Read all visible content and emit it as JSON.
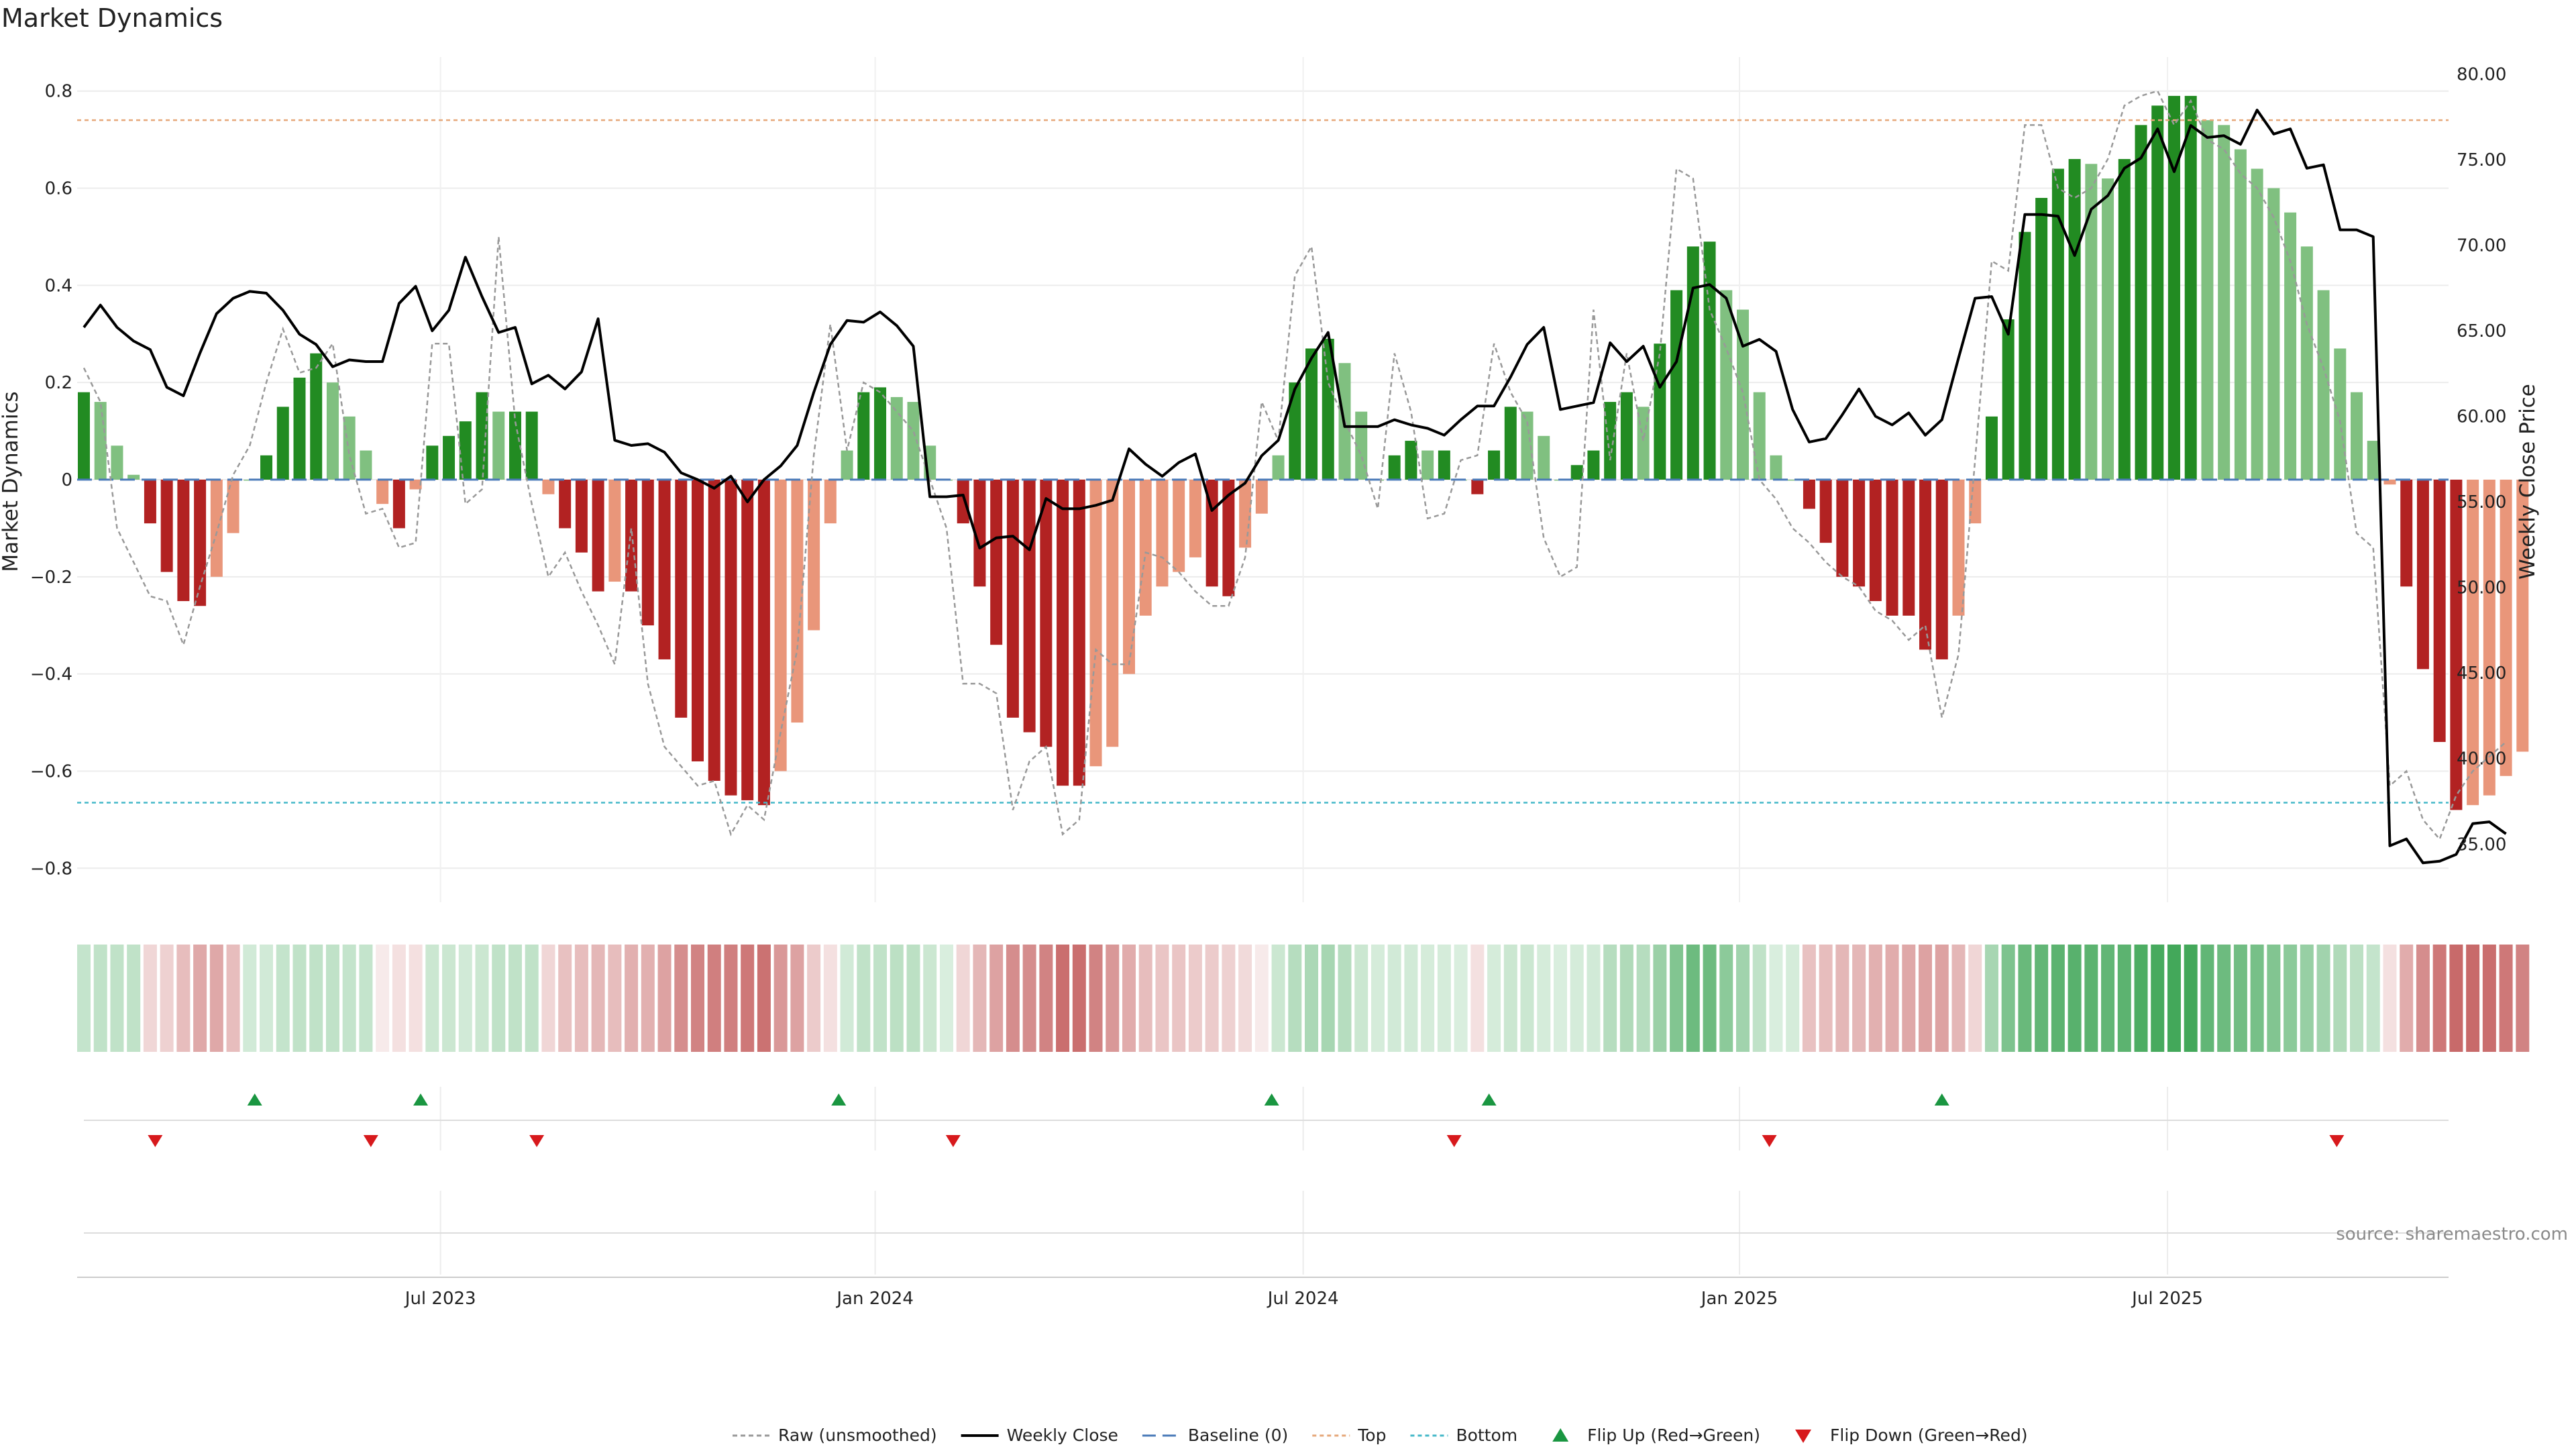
{
  "chart_data": {
    "type": "bar",
    "title": "Market Dynamics",
    "ylabel_left": "Market Dynamics",
    "ylabel_right": "Weekly Close Price",
    "ylim_left": [
      -0.87,
      0.87
    ],
    "ylim_right": [
      31.6,
      81.0
    ],
    "left_ticks": [
      {
        "v": 0.8,
        "label": "0.8"
      },
      {
        "v": 0.6,
        "label": "0.6"
      },
      {
        "v": 0.4,
        "label": "0.4"
      },
      {
        "v": 0.2,
        "label": "0.2"
      },
      {
        "v": 0,
        "label": "0"
      },
      {
        "v": -0.2,
        "label": "−0.2"
      },
      {
        "v": -0.4,
        "label": "−0.4"
      },
      {
        "v": -0.6,
        "label": "−0.6"
      },
      {
        "v": -0.8,
        "label": "−0.8"
      }
    ],
    "right_ticks": [
      {
        "v": 80,
        "label": "80.00"
      },
      {
        "v": 75,
        "label": "75.00"
      },
      {
        "v": 70,
        "label": "70.00"
      },
      {
        "v": 65,
        "label": "65.00"
      },
      {
        "v": 60,
        "label": "60.00"
      },
      {
        "v": 55,
        "label": "55.00"
      },
      {
        "v": 50,
        "label": "50.00"
      },
      {
        "v": 45,
        "label": "45.00"
      },
      {
        "v": 40,
        "label": "40.00"
      },
      {
        "v": 35,
        "label": "35.00"
      }
    ],
    "x_ticks": [
      {
        "week": 21.5,
        "label": "Jul 2023"
      },
      {
        "week": 47.7,
        "label": "Jan 2024"
      },
      {
        "week": 73.5,
        "label": "Jul 2024"
      },
      {
        "week": 99.8,
        "label": "Jan 2025"
      },
      {
        "week": 125.6,
        "label": "Jul 2025"
      }
    ],
    "top_line": 0.74,
    "bottom_line": -0.665,
    "baseline": 0,
    "dynamics": [
      0.18,
      0.16,
      0.07,
      0.01,
      -0.09,
      -0.19,
      -0.25,
      -0.26,
      -0.2,
      -0.11,
      0.0,
      0.05,
      0.15,
      0.21,
      0.26,
      0.2,
      0.13,
      0.06,
      -0.05,
      -0.1,
      -0.02,
      0.07,
      0.09,
      0.12,
      0.18,
      0.14,
      0.14,
      0.14,
      -0.03,
      -0.1,
      -0.15,
      -0.23,
      -0.21,
      -0.23,
      -0.3,
      -0.37,
      -0.49,
      -0.58,
      -0.62,
      -0.65,
      -0.66,
      -0.67,
      -0.6,
      -0.5,
      -0.31,
      -0.09,
      0.06,
      0.18,
      0.19,
      0.17,
      0.16,
      0.07,
      0.0,
      -0.09,
      -0.22,
      -0.34,
      -0.49,
      -0.52,
      -0.55,
      -0.63,
      -0.63,
      -0.59,
      -0.55,
      -0.4,
      -0.28,
      -0.22,
      -0.19,
      -0.16,
      -0.22,
      -0.24,
      -0.14,
      -0.07,
      0.05,
      0.2,
      0.27,
      0.29,
      0.24,
      0.14,
      0.0,
      0.05,
      0.08,
      0.06,
      0.06,
      0.0,
      -0.03,
      0.06,
      0.15,
      0.14,
      0.09,
      0.0,
      0.03,
      0.06,
      0.16,
      0.18,
      0.15,
      0.28,
      0.39,
      0.48,
      0.49,
      0.39,
      0.35,
      0.18,
      0.05,
      0.0,
      -0.06,
      -0.13,
      -0.2,
      -0.22,
      -0.25,
      -0.28,
      -0.28,
      -0.35,
      -0.37,
      -0.28,
      -0.09,
      0.13,
      0.33,
      0.51,
      0.58,
      0.64,
      0.66,
      0.65,
      0.62,
      0.66,
      0.73,
      0.77,
      0.79,
      0.79,
      0.74,
      0.73,
      0.68,
      0.64,
      0.6,
      0.55,
      0.48,
      0.39,
      0.27,
      0.18,
      0.08,
      -0.01,
      -0.22,
      -0.39,
      -0.54,
      -0.68,
      -0.67,
      -0.65,
      -0.61,
      -0.56
    ],
    "raw": [
      0.23,
      0.16,
      -0.1,
      -0.17,
      -0.24,
      -0.25,
      -0.34,
      -0.22,
      -0.11,
      0.01,
      0.07,
      0.2,
      0.31,
      0.22,
      0.23,
      0.28,
      0.05,
      -0.07,
      -0.06,
      -0.14,
      -0.13,
      0.28,
      0.28,
      -0.05,
      -0.02,
      0.5,
      0.12,
      -0.05,
      -0.2,
      -0.15,
      -0.23,
      -0.3,
      -0.38,
      -0.1,
      -0.42,
      -0.55,
      -0.59,
      -0.63,
      -0.62,
      -0.73,
      -0.67,
      -0.7,
      -0.52,
      -0.35,
      0.05,
      0.32,
      0.06,
      0.2,
      0.18,
      0.14,
      0.1,
      0.0,
      -0.1,
      -0.42,
      -0.42,
      -0.44,
      -0.68,
      -0.58,
      -0.55,
      -0.73,
      -0.7,
      -0.35,
      -0.38,
      -0.38,
      -0.15,
      -0.16,
      -0.19,
      -0.23,
      -0.26,
      -0.26,
      -0.16,
      0.16,
      0.08,
      0.42,
      0.48,
      0.2,
      0.12,
      0.05,
      -0.06,
      0.26,
      0.14,
      -0.08,
      -0.07,
      0.04,
      0.05,
      0.28,
      0.18,
      0.12,
      -0.12,
      -0.2,
      -0.18,
      0.35,
      0.04,
      0.26,
      0.08,
      0.26,
      0.64,
      0.62,
      0.35,
      0.27,
      0.18,
      0.0,
      -0.04,
      -0.1,
      -0.13,
      -0.17,
      -0.2,
      -0.22,
      -0.27,
      -0.29,
      -0.33,
      -0.3,
      -0.49,
      -0.36,
      0.04,
      0.45,
      0.43,
      0.73,
      0.73,
      0.6,
      0.58,
      0.6,
      0.66,
      0.77,
      0.79,
      0.8,
      0.73,
      0.78,
      0.7,
      0.68,
      0.63,
      0.6,
      0.54,
      0.45,
      0.32,
      0.23,
      0.12,
      -0.11,
      -0.14,
      -0.63,
      -0.6,
      -0.7,
      -0.74,
      -0.65,
      -0.6,
      -0.57,
      -0.54
    ],
    "close": [
      65.2,
      66.5,
      65.2,
      64.4,
      63.9,
      61.7,
      61.2,
      63.7,
      66.0,
      66.9,
      67.3,
      67.2,
      66.2,
      64.8,
      64.2,
      62.9,
      63.3,
      63.2,
      63.2,
      66.6,
      67.6,
      65.0,
      66.2,
      69.3,
      67.0,
      64.9,
      65.2,
      61.9,
      62.4,
      61.6,
      62.6,
      65.7,
      58.6,
      58.3,
      58.4,
      57.9,
      56.7,
      56.3,
      55.8,
      56.5,
      55.0,
      56.3,
      57.1,
      58.3,
      61.4,
      64.2,
      65.6,
      65.5,
      66.1,
      65.3,
      64.1,
      55.3,
      55.3,
      55.4,
      52.3,
      52.9,
      53.0,
      52.2,
      55.2,
      54.6,
      54.6,
      54.8,
      55.1,
      58.1,
      57.2,
      56.5,
      57.3,
      57.8,
      54.5,
      55.4,
      56.1,
      57.7,
      58.6,
      61.6,
      63.4,
      64.9,
      59.4,
      59.4,
      59.4,
      59.8,
      59.5,
      59.3,
      58.9,
      59.8,
      60.6,
      60.6,
      62.3,
      64.2,
      65.2,
      60.4,
      60.6,
      60.8,
      64.3,
      63.2,
      64.1,
      61.7,
      63.2,
      67.5,
      67.7,
      66.9,
      64.1,
      64.5,
      63.8,
      60.4,
      58.5,
      58.7,
      60.1,
      61.6,
      60.0,
      59.5,
      60.2,
      58.9,
      59.8,
      63.4,
      66.9,
      67.0,
      64.8,
      71.8,
      71.8,
      71.7,
      69.4,
      72.1,
      72.9,
      74.5,
      75.1,
      76.8,
      74.3,
      77.0,
      76.3,
      76.4,
      75.9,
      77.9,
      76.5,
      76.8,
      74.5,
      74.7,
      70.9,
      70.9,
      70.5,
      34.9,
      35.3,
      33.9,
      34.0,
      34.4,
      36.2,
      36.3,
      35.6
    ],
    "strip_intensity": [
      0.28,
      0.3,
      0.3,
      0.3,
      0.2,
      0.22,
      0.32,
      0.42,
      0.42,
      0.32,
      0.22,
      0.22,
      0.28,
      0.3,
      0.3,
      0.3,
      0.28,
      0.28,
      0.1,
      0.15,
      0.15,
      0.25,
      0.25,
      0.22,
      0.25,
      0.3,
      0.3,
      0.3,
      0.2,
      0.3,
      0.32,
      0.35,
      0.32,
      0.38,
      0.38,
      0.45,
      0.55,
      0.6,
      0.62,
      0.62,
      0.65,
      0.68,
      0.5,
      0.45,
      0.25,
      0.15,
      0.22,
      0.3,
      0.3,
      0.32,
      0.32,
      0.25,
      0.18,
      0.2,
      0.35,
      0.45,
      0.55,
      0.55,
      0.6,
      0.7,
      0.7,
      0.6,
      0.5,
      0.4,
      0.32,
      0.28,
      0.28,
      0.25,
      0.25,
      0.22,
      0.18,
      0.1,
      0.25,
      0.35,
      0.4,
      0.42,
      0.35,
      0.25,
      0.2,
      0.22,
      0.22,
      0.2,
      0.2,
      0.18,
      0.15,
      0.2,
      0.25,
      0.25,
      0.2,
      0.18,
      0.2,
      0.22,
      0.35,
      0.38,
      0.35,
      0.48,
      0.6,
      0.7,
      0.7,
      0.55,
      0.45,
      0.3,
      0.18,
      0.2,
      0.3,
      0.32,
      0.35,
      0.35,
      0.38,
      0.4,
      0.42,
      0.45,
      0.45,
      0.35,
      0.2,
      0.42,
      0.62,
      0.72,
      0.75,
      0.78,
      0.8,
      0.78,
      0.75,
      0.78,
      0.85,
      0.88,
      0.9,
      0.9,
      0.75,
      0.7,
      0.68,
      0.65,
      0.6,
      0.55,
      0.5,
      0.45,
      0.38,
      0.32,
      0.28,
      0.15,
      0.4,
      0.55,
      0.65,
      0.72,
      0.72,
      0.7,
      0.65,
      0.6
    ],
    "flip_up_weeks": [
      10.3,
      20.3,
      45.5,
      71.6,
      84.7,
      112.0
    ],
    "flip_down_weeks": [
      4.3,
      17.3,
      27.3,
      52.4,
      82.6,
      101.6,
      135.8
    ],
    "legend": [
      {
        "key": "raw",
        "label": "Raw (unsmoothed)"
      },
      {
        "key": "close",
        "label": "Weekly Close"
      },
      {
        "key": "baseline",
        "label": "Baseline (0)"
      },
      {
        "key": "top",
        "label": "Top"
      },
      {
        "key": "bottom",
        "label": "Bottom"
      },
      {
        "key": "flip_up",
        "label": "Flip Up (Red→Green)"
      },
      {
        "key": "flip_down",
        "label": "Flip Down (Green→Red)"
      }
    ],
    "legend_position": "bottom-center",
    "source": "source: sharemaestro.com",
    "colors": {
      "green_dark": "#228b22",
      "green_light": "#80c080",
      "red_dark": "#b22222",
      "red_light": "#e9967a",
      "raw": "#999999",
      "close": "#000000",
      "baseline": "#4a7ab8",
      "top": "#e6a87a",
      "bottom": "#45b8c8",
      "flip_up": "#1a9641",
      "flip_down": "#d7191c",
      "strip_green": "#2e9e48",
      "strip_red": "#b33030"
    }
  }
}
